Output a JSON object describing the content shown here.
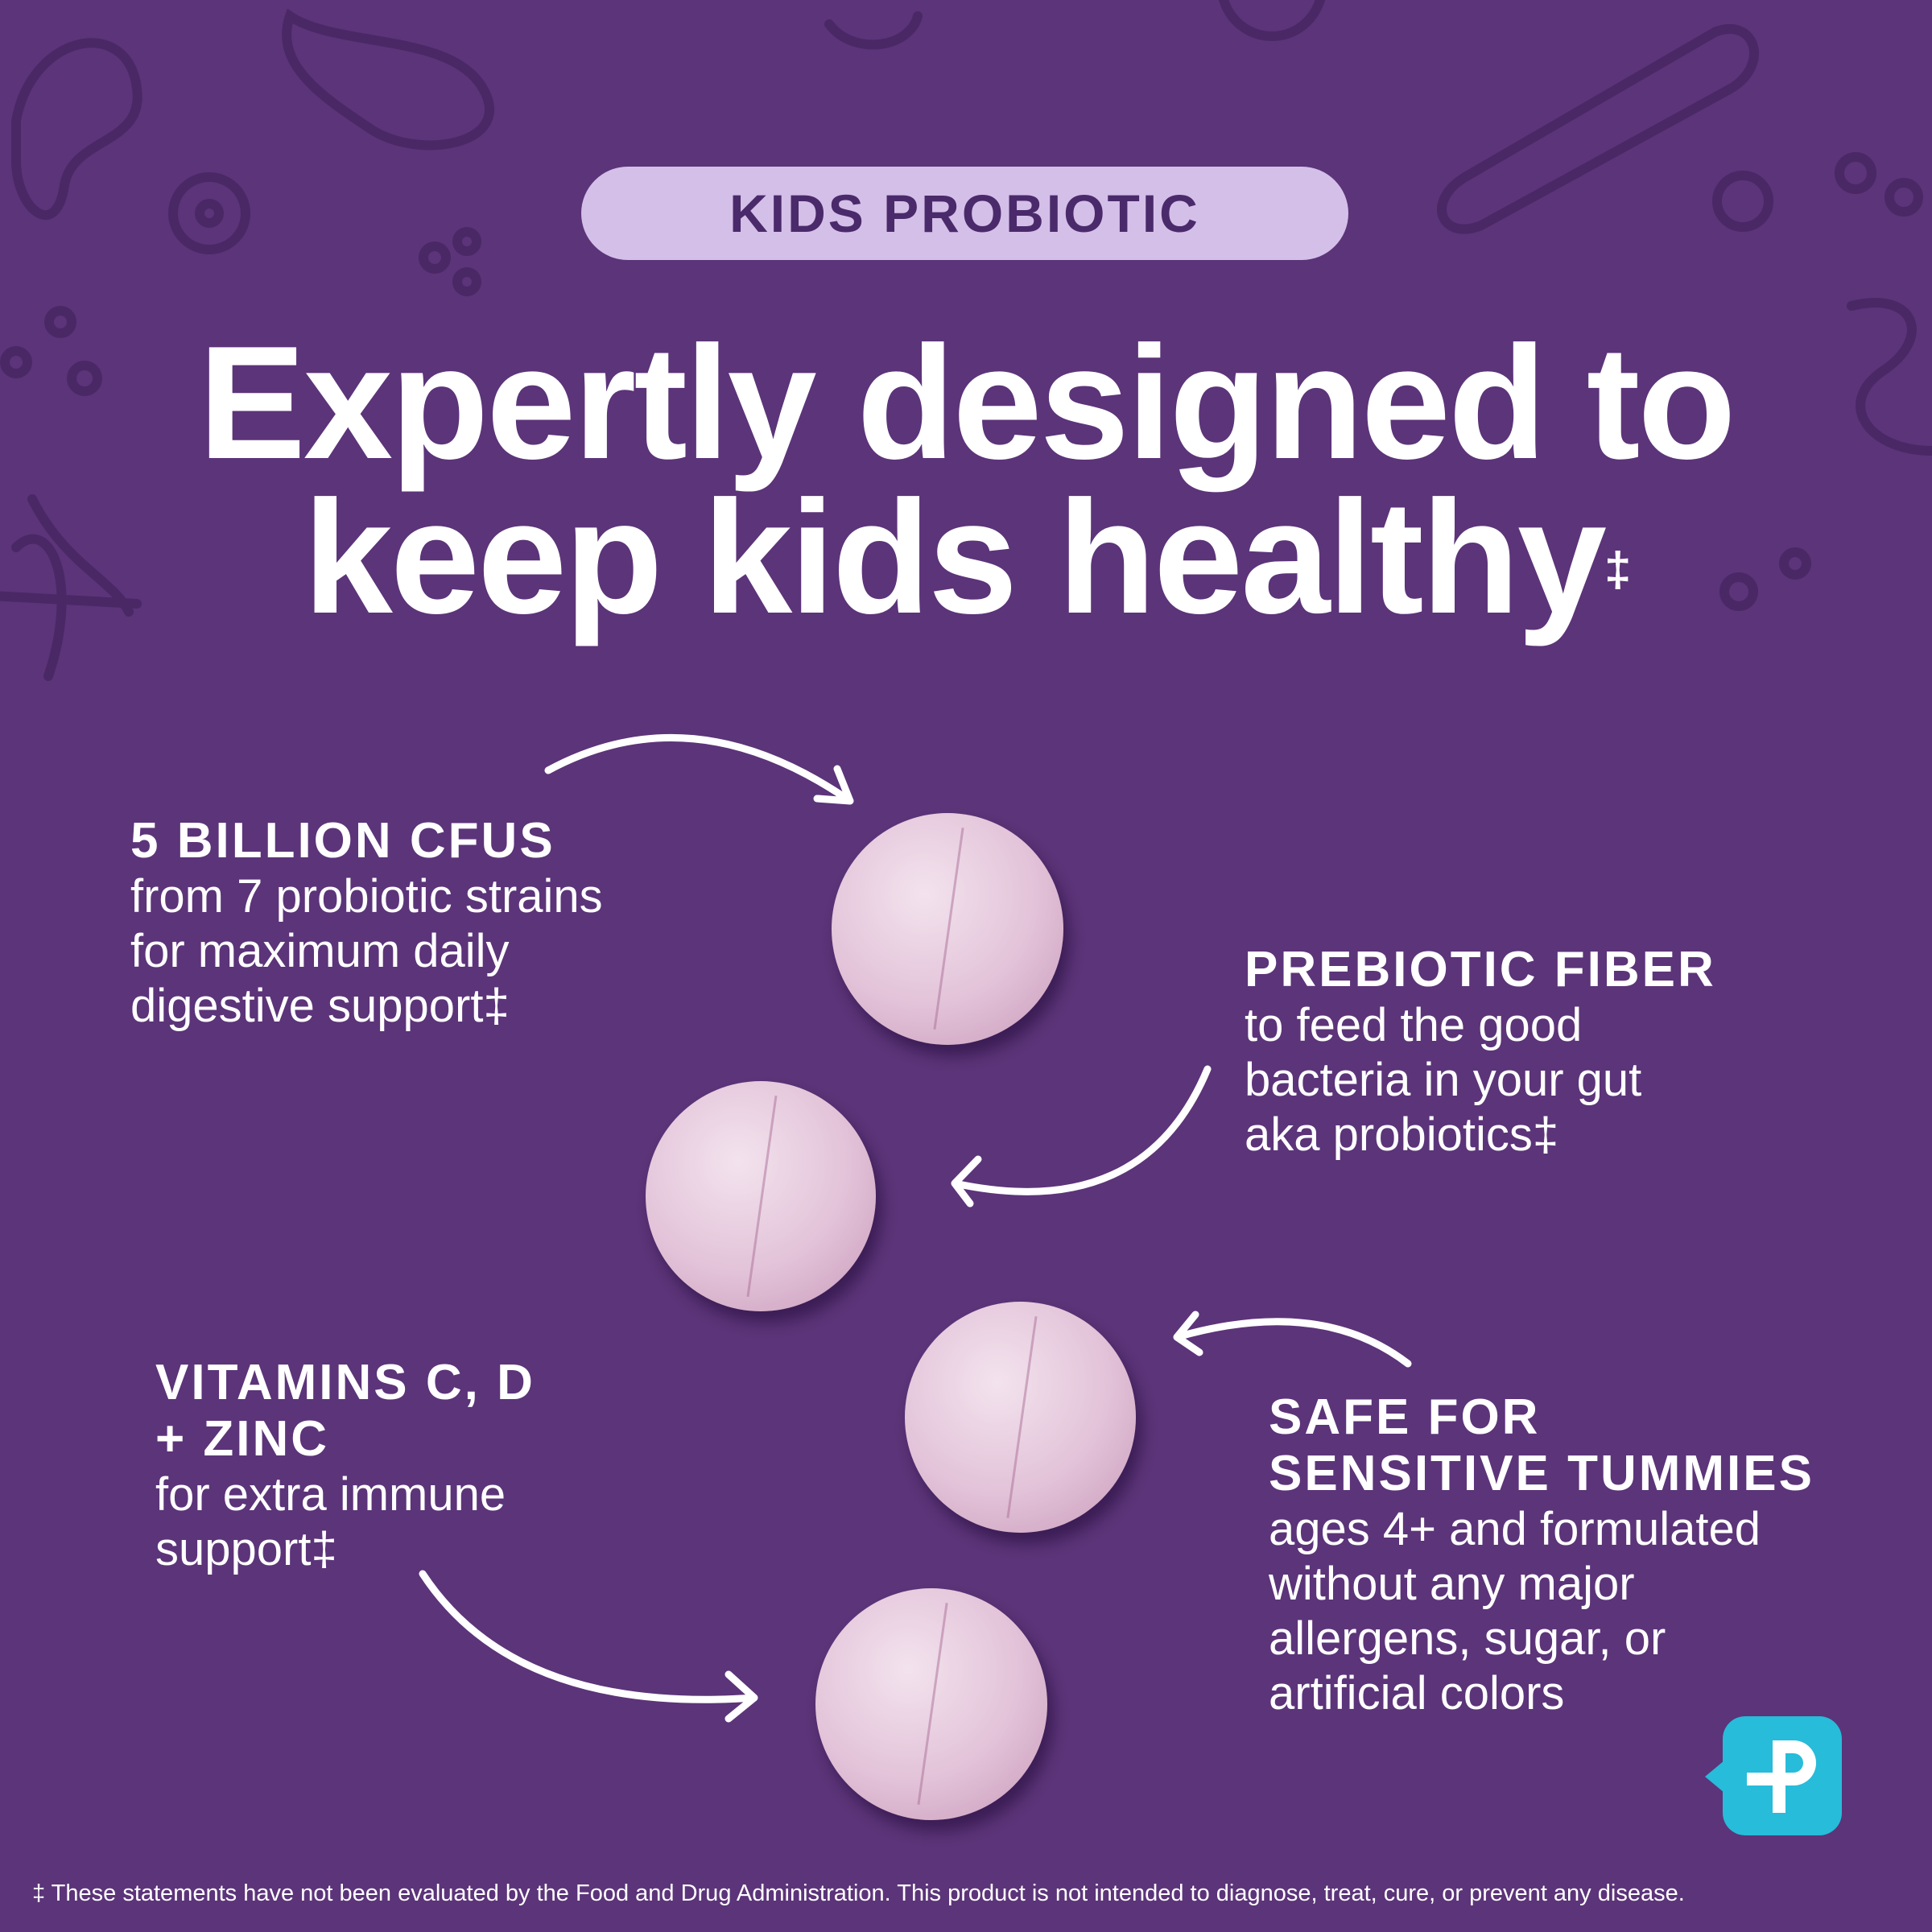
{
  "badge": "KIDS PROBIOTIC",
  "headline": {
    "line1": "Expertly designed to",
    "line2": "keep kids healthy",
    "mark": "‡"
  },
  "features": [
    {
      "title": "5 BILLION CFUS",
      "body": [
        "from 7 probiotic strains",
        "for maximum daily",
        "digestive support‡"
      ]
    },
    {
      "title": "PREBIOTIC FIBER",
      "body": [
        "to feed the good",
        "bacteria in your gut",
        "aka probiotics‡"
      ]
    },
    {
      "title_lines": [
        "VITAMINS C, D",
        "+ ZINC"
      ],
      "body": [
        "for extra immune",
        "support‡"
      ]
    },
    {
      "title_lines": [
        "SAFE FOR",
        "SENSITIVE TUMMIES"
      ],
      "body": [
        "ages 4+ and formulated",
        "without any major",
        "allergens, sugar, or",
        "artificial colors"
      ]
    }
  ],
  "logo": {
    "icon": "pharmacy-p-cross-logo",
    "color": "#27bcd9"
  },
  "footer": "‡ These statements have not been evaluated by the Food and Drug Administration. This product is not intended to diagnose, treat, cure, or prevent any disease.",
  "colors": {
    "background": "#5c3479",
    "badge": "#d4bfe9",
    "badge_text": "#4a2a6a"
  }
}
